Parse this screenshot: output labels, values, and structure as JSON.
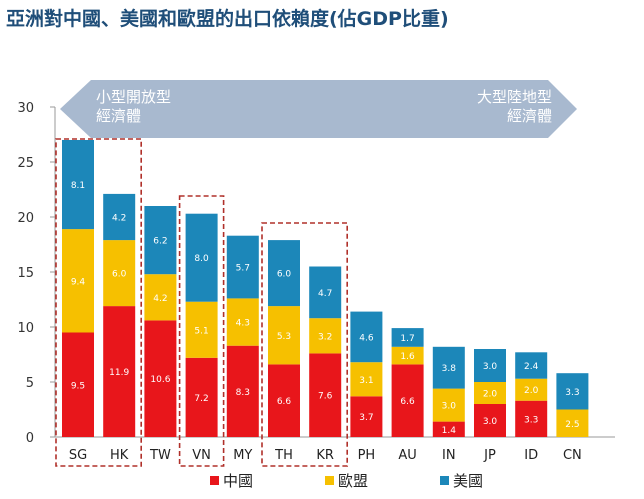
{
  "title": "亞洲對中國、美國和歐盟的出口依賴度(佔GDP比重)",
  "arrow": {
    "left_line1": "小型開放型",
    "left_line2": "經濟體",
    "right_line1": "大型陸地型",
    "right_line2": "經濟體"
  },
  "colors": {
    "china": "#e8161b",
    "eu": "#f6c000",
    "us": "#1c87b9",
    "arrow": "#a8b9cf",
    "highlight_box": "#b0302a",
    "bar_label": "#ffffff"
  },
  "chart_data": {
    "type": "bar",
    "stacked": true,
    "categories": [
      "SG",
      "HK",
      "TW",
      "VN",
      "MY",
      "TH",
      "KR",
      "PH",
      "AU",
      "IN",
      "JP",
      "ID",
      "CN"
    ],
    "series": [
      {
        "name": "中國",
        "values": [
          9.5,
          11.9,
          10.6,
          7.2,
          8.3,
          6.6,
          7.6,
          3.7,
          6.6,
          1.4,
          3.0,
          3.3,
          0.0
        ]
      },
      {
        "name": "歐盟",
        "values": [
          9.4,
          6.0,
          4.2,
          5.1,
          4.3,
          5.3,
          3.2,
          3.1,
          1.6,
          3.0,
          2.0,
          2.0,
          2.5
        ]
      },
      {
        "name": "美國",
        "values": [
          8.1,
          4.2,
          6.2,
          8.0,
          5.7,
          6.0,
          4.7,
          4.6,
          1.7,
          3.8,
          3.0,
          2.4,
          3.3
        ]
      }
    ],
    "ylim": [
      0,
      30
    ],
    "yticks": [
      0,
      5,
      10,
      15,
      20,
      25,
      30
    ],
    "highlight_groups": [
      [
        "SG",
        "HK"
      ],
      [
        "VN"
      ],
      [
        "TH",
        "KR"
      ]
    ],
    "legend_position": "bottom"
  }
}
